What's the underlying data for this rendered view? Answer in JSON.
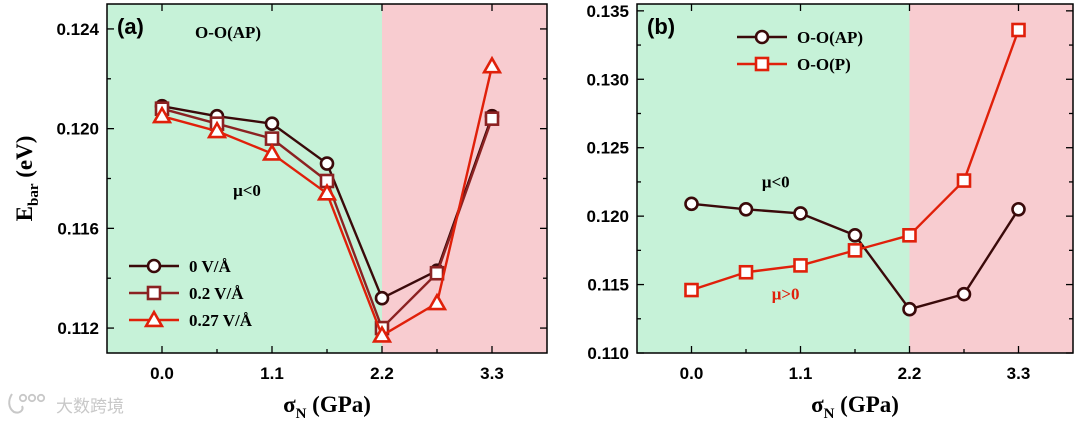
{
  "colors": {
    "green_region": "#c6f2d8",
    "red_region": "#f8ccd0",
    "dark": "#3a0a0a",
    "mid": "#8b2222",
    "red": "#e0200a"
  },
  "watermark": "大数跨境",
  "chart_data": [
    {
      "type": "line",
      "panel": "(a)",
      "title": "O-O(AP)",
      "ylabel_main": "E",
      "ylabel_sub": "bar",
      "ylabel_unit": " (eV)",
      "xlabel_main": "σ",
      "xlabel_sub": "N",
      "xlabel_unit": " (GPa)",
      "xlim": [
        -0.55,
        3.85
      ],
      "ylim": [
        0.111,
        0.125
      ],
      "xticks": [
        0.0,
        1.1,
        2.2,
        3.3
      ],
      "xtick_labels": [
        "0.0",
        "1.1",
        "2.2",
        "3.3"
      ],
      "yticks": [
        0.112,
        0.116,
        0.12,
        0.124
      ],
      "ytick_labels": [
        "0.112",
        "0.116",
        "0.120",
        "0.124"
      ],
      "regions": [
        {
          "from": -0.55,
          "to": 2.2,
          "color": "green"
        },
        {
          "from": 2.2,
          "to": 3.85,
          "color": "red"
        }
      ],
      "annotations": [
        {
          "text": "μ<0",
          "x": 0.85,
          "y": 0.1173,
          "color": "#000000"
        }
      ],
      "legend_position": "bottom-left",
      "series": [
        {
          "name": "0 V/Å",
          "marker": "circle",
          "color": "#3a0a0a",
          "x": [
            0.0,
            0.55,
            1.1,
            1.65,
            2.2,
            2.75,
            3.3
          ],
          "values": [
            0.1209,
            0.1205,
            0.1202,
            0.1186,
            0.1132,
            0.1143,
            0.1205
          ]
        },
        {
          "name": "0.2 V/Å",
          "marker": "square",
          "color": "#8b2222",
          "x": [
            0.0,
            0.55,
            1.1,
            1.65,
            2.2,
            2.75,
            3.3
          ],
          "values": [
            0.1208,
            0.1202,
            0.1196,
            0.1179,
            0.112,
            0.1142,
            0.1204
          ]
        },
        {
          "name": "0.27 V/Å",
          "marker": "triangle",
          "color": "#e0200a",
          "x": [
            0.0,
            0.55,
            1.1,
            1.65,
            2.2,
            2.75,
            3.3
          ],
          "values": [
            0.1205,
            0.1199,
            0.119,
            0.1174,
            0.1117,
            0.113,
            0.1225
          ]
        }
      ]
    },
    {
      "type": "line",
      "panel": "(b)",
      "xlabel_main": "σ",
      "xlabel_sub": "N",
      "xlabel_unit": " (GPa)",
      "xlim": [
        -0.55,
        3.85
      ],
      "ylim": [
        0.11,
        0.1355
      ],
      "xticks": [
        0.0,
        1.1,
        2.2,
        3.3
      ],
      "xtick_labels": [
        "0.0",
        "1.1",
        "2.2",
        "3.3"
      ],
      "yticks": [
        0.11,
        0.115,
        0.12,
        0.125,
        0.13,
        0.135
      ],
      "ytick_labels": [
        "0.110",
        "0.115",
        "0.120",
        "0.125",
        "0.130",
        "0.135"
      ],
      "regions": [
        {
          "from": -0.55,
          "to": 2.2,
          "color": "green"
        },
        {
          "from": 2.2,
          "to": 3.85,
          "color": "red"
        }
      ],
      "annotations": [
        {
          "text": "μ<0",
          "x": 0.85,
          "y": 0.1221,
          "color": "#000000"
        },
        {
          "text": "μ>0",
          "x": 0.95,
          "y": 0.1139,
          "color": "#e0200a"
        }
      ],
      "legend_position": "top-left",
      "series": [
        {
          "name": "O-O(AP)",
          "marker": "circle",
          "color": "#3a0a0a",
          "x": [
            0.0,
            0.55,
            1.1,
            1.65,
            2.2,
            2.75,
            3.3
          ],
          "values": [
            0.1209,
            0.1205,
            0.1202,
            0.1186,
            0.1132,
            0.1143,
            0.1205
          ]
        },
        {
          "name": "O-O(P)",
          "marker": "square",
          "color": "#e0200a",
          "x": [
            0.0,
            0.55,
            1.1,
            1.65,
            2.2,
            2.75,
            3.3
          ],
          "values": [
            0.1146,
            0.1159,
            0.1164,
            0.1175,
            0.1186,
            0.1226,
            0.1336
          ]
        }
      ]
    }
  ]
}
